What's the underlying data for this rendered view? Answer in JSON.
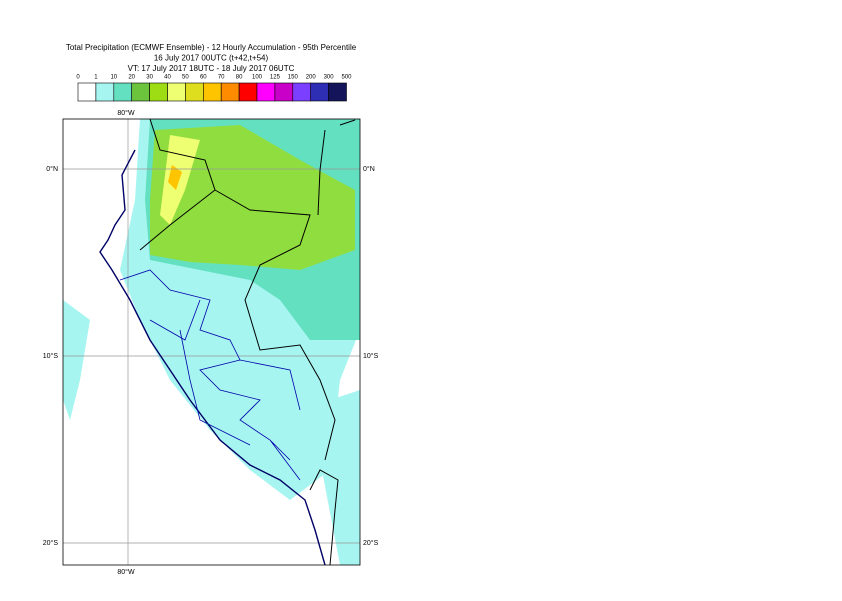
{
  "header": {
    "title": [
      "Total Precipitation (ECMWF Ensemble) - 12 Hourly Accumulation - 95th Percentile",
      "16 July 2017 00UTC (t+42,t+54)",
      "VT: 17 July 2017 18UTC - 18 July 2017 06UTC"
    ]
  },
  "legend": {
    "labels": [
      "0",
      "1",
      "10",
      "20",
      "30",
      "40",
      "50",
      "60",
      "70",
      "80",
      "100",
      "125",
      "150",
      "200",
      "300",
      "500"
    ],
    "colors": [
      "#ffffff",
      "#a6f5f0",
      "#63e0c0",
      "#6cc43c",
      "#9edc14",
      "#eeff72",
      "#dede1e",
      "#ffc400",
      "#ff8c00",
      "#ff0000",
      "#ff00ff",
      "#c800c8",
      "#7b3fff",
      "#2e2eb4",
      "#14145a"
    ]
  },
  "map": {
    "lon_label": "80°W",
    "lat_labels": [
      "0°N",
      "10°S",
      "20°S"
    ]
  }
}
